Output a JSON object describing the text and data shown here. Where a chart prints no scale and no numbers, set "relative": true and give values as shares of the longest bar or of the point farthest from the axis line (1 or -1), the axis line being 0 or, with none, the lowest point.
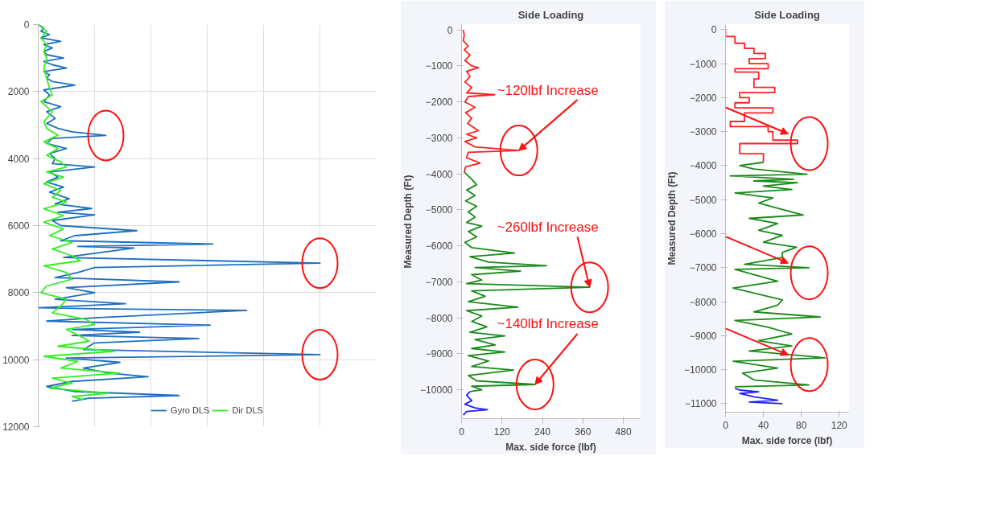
{
  "chart_data": [
    {
      "type": "line",
      "orientation": "horizontal",
      "relative": true,
      "ylim": [
        12000,
        0
      ],
      "yticks": [
        0,
        2000,
        4000,
        6000,
        8000,
        10000,
        12000
      ],
      "grid": true,
      "legend": "bottom",
      "tick_labels": "y",
      "series": [
        {
          "name": "Gyro DLS",
          "color": "#1f6fc0",
          "values": [
            0,
            0.02,
            0.01,
            0.04,
            0.01,
            0.08,
            0.02,
            0.05,
            0.02,
            0.03,
            0.09,
            0.02,
            0.05,
            0.1,
            0.02,
            0.04,
            0.03,
            0.05,
            0.13,
            0.02,
            0.04,
            0.02,
            0.08,
            0.03,
            0.06,
            0.03,
            0.07,
            0.12,
            0.24,
            0.05,
            0.03,
            0.1,
            0.04,
            0.06,
            0.05,
            0.2,
            0.04,
            0.07,
            0.03,
            0.09,
            0.04,
            0.11,
            0.06,
            0.19,
            0.07,
            0.2,
            0.05,
            0.08,
            0.35,
            0.13,
            0.08,
            0.62,
            0.14,
            0.34,
            0.09,
            1.0,
            0.2,
            0.14,
            0.06,
            0.5,
            0.1,
            0.2,
            0.06,
            0.31,
            0.0,
            0.2,
            0.74,
            0.2,
            0.03,
            0.61,
            0.12,
            0.36,
            0.12,
            0.57,
            0.2,
            0.16,
            1.0,
            0.1,
            0.29,
            0.16,
            0.25,
            0.39,
            0.12,
            0.03,
            0.13,
            0.5,
            0.18,
            0.12
          ],
          "x": [
            0,
            100,
            200,
            300,
            400,
            500,
            600,
            700,
            800,
            900,
            1000,
            1100,
            1200,
            1300,
            1400,
            1500,
            1600,
            1700,
            1810,
            1950,
            2100,
            2300,
            2450,
            2600,
            2800,
            2950,
            3100,
            3200,
            3310,
            3400,
            3550,
            3700,
            3850,
            4000,
            4150,
            4250,
            4400,
            4550,
            4700,
            4850,
            5000,
            5200,
            5350,
            5490,
            5600,
            5680,
            5850,
            6000,
            6150,
            6300,
            6450,
            6550,
            6620,
            6670,
            6950,
            7120,
            7250,
            7400,
            7550,
            7680,
            7850,
            8000,
            8200,
            8330,
            8450,
            8480,
            8530,
            8750,
            8850,
            8970,
            9100,
            9180,
            9280,
            9370,
            9500,
            9700,
            9850,
            9950,
            10080,
            10250,
            10400,
            10510,
            10650,
            10800,
            10950,
            11070,
            11150,
            11240
          ]
        },
        {
          "name": "Dir DLS",
          "color": "#33ee22",
          "values": [
            0,
            0.03,
            0.01,
            0.03,
            0.02,
            0.03,
            0.02,
            0.03,
            0.04,
            0.05,
            0.01,
            0.05,
            0.02,
            0.03,
            0.07,
            0.02,
            0.07,
            0.03,
            0.08,
            0.1,
            0.03,
            0.09,
            0.02,
            0.08,
            0.05,
            0.1,
            0.02,
            0.09,
            0.02,
            0.09,
            0.04,
            0.12,
            0.05,
            0.12,
            0.15,
            0.02,
            0.1,
            0.12,
            0.03,
            0.01,
            0.1,
            0.08,
            0.05,
            0.17,
            0.2,
            0.1,
            0.15,
            0.18,
            0.07,
            0.27,
            0.02,
            0.14,
            0.08,
            0.29,
            0.05,
            0.12,
            0.04,
            0.25,
            0.12,
            0.16
          ],
          "x": [
            0,
            200,
            400,
            600,
            800,
            1000,
            1300,
            1600,
            1900,
            2100,
            2300,
            2600,
            2900,
            3100,
            3300,
            3500,
            3700,
            3900,
            4100,
            4250,
            4400,
            4550,
            4750,
            4950,
            5150,
            5300,
            5500,
            5700,
            5900,
            6100,
            6300,
            6500,
            6700,
            6900,
            7050,
            7200,
            7400,
            7600,
            7800,
            8000,
            8200,
            8400,
            8600,
            8800,
            8950,
            9100,
            9300,
            9450,
            9600,
            9750,
            9900,
            10050,
            10250,
            10400,
            10550,
            10700,
            10850,
            11000,
            11100,
            11200
          ]
        }
      ]
    },
    {
      "type": "line",
      "orientation": "horizontal",
      "title": "Side Loading",
      "xlabel": "Max. side force (lbf)",
      "ylabel": "Measured Depth (Ft)",
      "xlim": [
        0,
        530
      ],
      "xticks": [
        0,
        120,
        240,
        360,
        480
      ],
      "ylim": [
        -10800,
        150
      ],
      "yticks": [
        0,
        -1000,
        -2000,
        -3000,
        -4000,
        -5000,
        -6000,
        -7000,
        -8000,
        -9000,
        -10000
      ],
      "annotations": [
        {
          "text": "~120lbf Increase",
          "x": 170,
          "y": -3350
        },
        {
          "text": "~260lbf Increase",
          "x": 380,
          "y": -7150
        },
        {
          "text": "~140lbf Increase",
          "x": 218,
          "y": -9850
        }
      ],
      "series": [
        {
          "color": "#ff2020",
          "values": [
            5,
            8,
            5,
            20,
            8,
            25,
            10,
            30,
            50,
            15,
            25,
            10,
            30,
            15,
            98,
            20,
            10,
            40,
            12,
            30,
            18,
            50,
            15,
            45,
            10,
            40,
            170,
            20,
            15,
            55,
            12,
            8
          ],
          "x": [
            0,
            -150,
            -300,
            -450,
            -550,
            -700,
            -850,
            -1000,
            -1050,
            -1150,
            -1300,
            -1450,
            -1600,
            -1750,
            -1800,
            -1850,
            -2000,
            -2150,
            -2300,
            -2450,
            -2600,
            -2800,
            -2900,
            -3000,
            -3100,
            -3250,
            -3350,
            -3400,
            -3550,
            -3700,
            -3800,
            -3950
          ]
        },
        {
          "color": "#1a8a1a",
          "values": [
            8,
            30,
            45,
            15,
            40,
            12,
            45,
            20,
            40,
            15,
            60,
            20,
            45,
            10,
            30,
            157,
            25,
            80,
            252,
            40,
            175,
            30,
            60,
            15,
            380,
            30,
            70,
            20,
            167,
            15,
            60,
            30,
            75,
            25,
            128,
            40,
            100,
            30,
            128,
            20,
            80,
            30,
            154,
            20,
            45,
            218,
            30,
            60,
            25
          ],
          "x": [
            -3950,
            -4150,
            -4300,
            -4450,
            -4600,
            -4750,
            -4900,
            -5050,
            -5200,
            -5350,
            -5450,
            -5600,
            -5750,
            -5900,
            -6050,
            -6200,
            -6300,
            -6450,
            -6550,
            -6600,
            -6700,
            -6800,
            -6950,
            -7050,
            -7150,
            -7250,
            -7400,
            -7550,
            -7700,
            -7800,
            -7950,
            -8100,
            -8250,
            -8400,
            -8500,
            -8600,
            -8750,
            -8850,
            -8950,
            -9050,
            -9200,
            -9350,
            -9450,
            -9600,
            -9750,
            -9850,
            -9900,
            -10000,
            -10050
          ]
        },
        {
          "color": "#2020ff",
          "values": [
            25,
            15,
            30,
            10,
            40,
            77,
            15,
            5
          ],
          "x": [
            -10050,
            -10150,
            -10300,
            -10400,
            -10500,
            -10550,
            -10600,
            -10700
          ]
        }
      ]
    },
    {
      "type": "line",
      "orientation": "horizontal",
      "title": "Side Loading",
      "xlabel": "Max. side force (lbf)",
      "ylabel": "Measured Depth (Ft)",
      "xlim": [
        0,
        130
      ],
      "xticks": [
        0,
        40,
        80,
        120
      ],
      "ylim": [
        -11250,
        150
      ],
      "yticks": [
        0,
        -1000,
        -2000,
        -3000,
        -4000,
        -5000,
        -6000,
        -7000,
        -8000,
        -9000,
        -10000,
        -11000
      ],
      "series": [
        {
          "color": "#ff2020",
          "values": [
            0,
            0,
            10,
            10,
            20,
            20,
            30,
            30,
            42,
            42,
            25,
            25,
            45,
            45,
            10,
            10,
            35,
            35,
            30,
            30,
            52,
            52,
            15,
            15,
            25,
            25,
            10,
            10,
            50,
            50,
            20,
            20,
            5,
            5,
            45,
            45,
            50,
            50,
            76,
            76,
            15,
            15,
            40,
            40
          ],
          "x": [
            0,
            -200,
            -200,
            -400,
            -400,
            -550,
            -550,
            -700,
            -700,
            -850,
            -850,
            -1000,
            -1000,
            -1150,
            -1150,
            -1250,
            -1250,
            -1450,
            -1450,
            -1700,
            -1700,
            -1850,
            -1850,
            -2000,
            -2000,
            -2150,
            -2150,
            -2300,
            -2300,
            -2450,
            -2450,
            -2700,
            -2700,
            -2850,
            -2850,
            -3000,
            -3000,
            -3250,
            -3250,
            -3350,
            -3350,
            -3650,
            -3650,
            -3900
          ]
        },
        {
          "color": "#1a8a1a",
          "values": [
            40,
            15,
            30,
            86,
            5,
            72,
            30,
            76,
            40,
            70,
            10,
            50,
            35,
            55,
            82,
            25,
            55,
            35,
            60,
            40,
            75,
            60,
            60,
            20,
            88,
            10,
            55,
            8,
            60,
            55,
            30,
            100,
            10,
            45,
            70,
            35,
            70,
            25,
            105,
            8,
            55,
            18,
            30,
            88,
            10
          ],
          "x": [
            -3900,
            -4000,
            -4100,
            -4250,
            -4300,
            -4400,
            -4450,
            -4500,
            -4600,
            -4700,
            -4800,
            -4950,
            -5100,
            -5250,
            -5450,
            -5550,
            -5700,
            -5900,
            -6050,
            -6250,
            -6400,
            -6550,
            -6700,
            -6900,
            -7000,
            -7050,
            -7400,
            -7600,
            -7950,
            -8100,
            -8300,
            -8450,
            -8550,
            -8750,
            -8950,
            -9150,
            -9300,
            -9450,
            -9650,
            -9750,
            -9950,
            -10100,
            -10300,
            -10450,
            -10500
          ]
        },
        {
          "color": "#2020ff",
          "values": [
            10,
            15,
            35,
            15,
            30,
            55,
            25,
            60
          ],
          "x": [
            -10550,
            -10600,
            -10650,
            -10700,
            -10800,
            -10900,
            -10950,
            -11000
          ]
        }
      ]
    }
  ]
}
